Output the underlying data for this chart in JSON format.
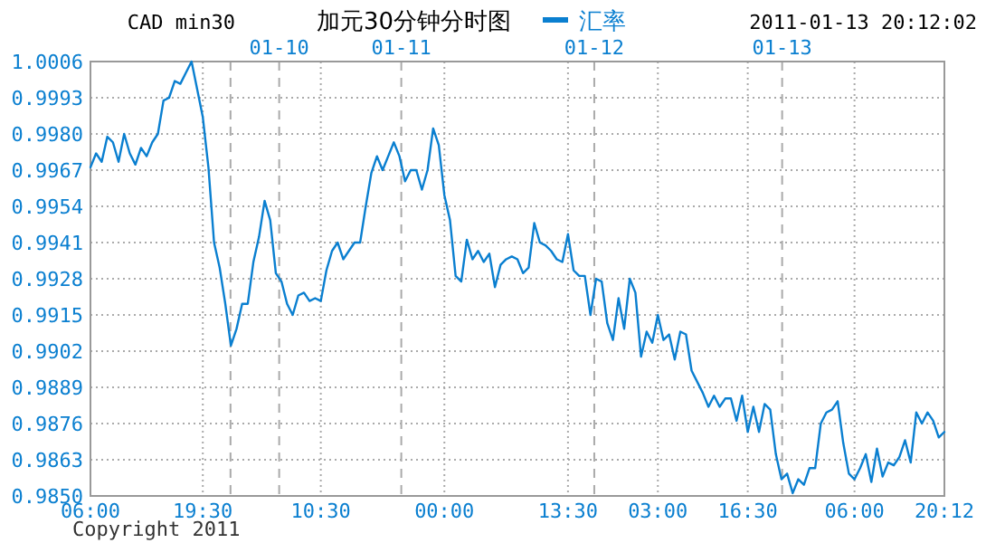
{
  "chart_data": {
    "type": "line",
    "title": "加元30分钟分时图",
    "annotations": [
      "CAD min30",
      "2011-01-13 20:12:02",
      "Copyright 2011",
      "01-10",
      "01-11",
      "01-12",
      "01-13"
    ],
    "legend": "top",
    "grid": true,
    "marker": "none",
    "line_style": "solid",
    "categories": [
      "06:00",
      null,
      null,
      null,
      null,
      null,
      null,
      null,
      null,
      null,
      null,
      null,
      null,
      null,
      null,
      null,
      null,
      null,
      null,
      null,
      "19:30",
      null,
      null,
      null,
      null,
      null,
      null,
      null,
      null,
      null,
      null,
      null,
      null,
      null,
      null,
      null,
      null,
      null,
      null,
      null,
      null,
      "10:30",
      null,
      null,
      null,
      null,
      null,
      null,
      null,
      null,
      null,
      null,
      null,
      null,
      null,
      null,
      null,
      null,
      null,
      null,
      null,
      null,
      null,
      "00:00",
      null,
      null,
      null,
      null,
      null,
      null,
      null,
      null,
      null,
      null,
      null,
      null,
      null,
      null,
      null,
      null,
      null,
      null,
      null,
      null,
      null,
      "13:30",
      null,
      null,
      null,
      null,
      null,
      null,
      null,
      null,
      null,
      null,
      null,
      null,
      null,
      null,
      null,
      "03:00",
      null,
      null,
      null,
      null,
      null,
      null,
      null,
      null,
      null,
      null,
      null,
      null,
      null,
      null,
      null,
      "16:30",
      null,
      null,
      null,
      null,
      null,
      null,
      null,
      null,
      null,
      null,
      null,
      null,
      null,
      null,
      null,
      null,
      null,
      null,
      "06:00",
      null,
      null,
      null,
      null,
      null,
      null,
      null,
      null,
      null,
      null,
      null,
      null,
      null,
      null,
      null,
      "20:12"
    ],
    "ylim": [
      0.985,
      1.0006
    ],
    "yticks": [
      {
        "value": 0.985,
        "label": "0.9850"
      },
      0.9863,
      0.9876,
      0.9889,
      0.9902,
      0.9915,
      0.9928,
      0.9941,
      0.9954,
      0.9967,
      {
        "value": 0.998,
        "label": "0.9980"
      },
      0.9993,
      1.0006
    ],
    "series": [
      {
        "name": "汇率",
        "color": "#0a7fd0",
        "values": [
          0.9968,
          0.9973,
          0.997,
          0.9979,
          0.9977,
          0.997,
          0.998,
          0.9973,
          0.9969,
          0.9975,
          0.9972,
          0.9977,
          0.998,
          0.9992,
          0.9993,
          0.9999,
          0.9998,
          1.0002,
          1.0006,
          0.9996,
          0.9986,
          0.9968,
          0.9941,
          0.9932,
          0.9919,
          0.9904,
          0.991,
          0.9919,
          0.9919,
          0.9934,
          0.9943,
          0.9956,
          0.9949,
          0.993,
          0.9927,
          0.9919,
          0.9915,
          0.9922,
          0.9923,
          0.992,
          0.9921,
          0.992,
          0.9931,
          0.9938,
          0.9941,
          0.9935,
          0.9938,
          0.9941,
          0.9941,
          0.9954,
          0.9966,
          0.9972,
          0.9967,
          0.9972,
          0.9977,
          0.9972,
          0.9963,
          0.9967,
          0.9967,
          0.996,
          0.9967,
          0.9982,
          0.9976,
          0.9958,
          0.9949,
          0.9929,
          0.9927,
          0.9942,
          0.9935,
          0.9938,
          0.9934,
          0.9937,
          0.9925,
          0.9933,
          0.9935,
          0.9936,
          0.9935,
          0.993,
          0.9932,
          0.9948,
          0.9941,
          0.994,
          0.9938,
          0.9935,
          0.9934,
          0.9944,
          0.9931,
          0.9929,
          0.9929,
          0.9915,
          0.9928,
          0.9927,
          0.9912,
          0.9906,
          0.9921,
          0.991,
          0.9928,
          0.9923,
          0.99,
          0.9909,
          0.9905,
          0.9915,
          0.9906,
          0.9908,
          0.9899,
          0.9909,
          0.9908,
          0.9895,
          0.9891,
          0.9887,
          0.9882,
          0.9886,
          0.9882,
          0.9885,
          0.9885,
          0.9877,
          0.9886,
          0.9873,
          0.9882,
          0.9873,
          0.9883,
          0.9881,
          0.9865,
          0.9856,
          0.9858,
          0.9851,
          0.9856,
          0.9854,
          0.986,
          0.986,
          0.9876,
          0.988,
          0.9881,
          0.9884,
          0.9869,
          0.9858,
          0.9856,
          0.986,
          0.9865,
          0.9855,
          0.9867,
          0.9857,
          0.9862,
          0.9861,
          0.9864,
          0.987,
          0.9862,
          0.988,
          0.9876,
          0.988,
          0.9877,
          0.9871,
          0.9873
        ]
      }
    ]
  }
}
